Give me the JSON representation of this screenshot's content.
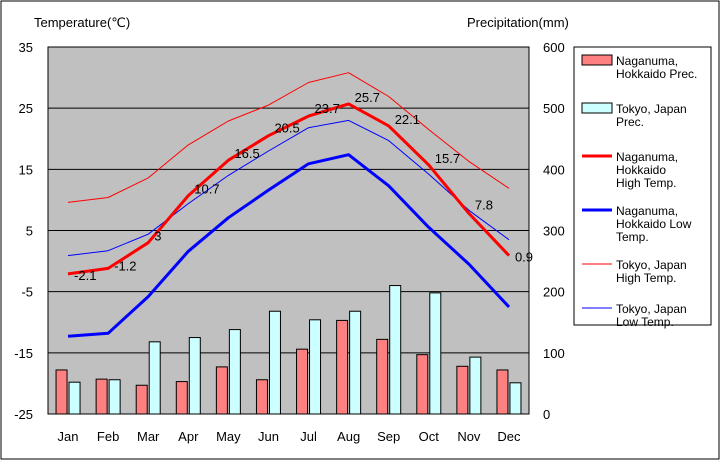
{
  "chart_data": {
    "type": "bar+line",
    "categories": [
      "Jan",
      "Feb",
      "Mar",
      "Apr",
      "May",
      "Jun",
      "Jul",
      "Aug",
      "Sep",
      "Oct",
      "Nov",
      "Dec"
    ],
    "left_axis": {
      "title": "Temperature(℃)",
      "min": -25,
      "max": 35,
      "ticks": [
        35,
        25,
        15,
        5,
        -5,
        -15,
        -25
      ]
    },
    "right_axis": {
      "title": "Precipitation(mm)",
      "min": 0,
      "max": 600,
      "ticks": [
        600,
        500,
        400,
        300,
        200,
        100,
        0
      ]
    },
    "bar_series": [
      {
        "name": "Naganuma, Hokkaido Prec.",
        "legend_lines": [
          "Naganuma,",
          "Hokkaido Prec."
        ],
        "color": "#ff8080",
        "values": [
          72,
          57,
          47,
          53,
          77,
          56,
          106,
          153,
          122,
          97,
          78,
          72
        ]
      },
      {
        "name": "Tokyo, Japan Prec.",
        "legend_lines": [
          "Tokyo, Japan",
          "Prec."
        ],
        "color": "#ccffff",
        "values": [
          52,
          56,
          118,
          125,
          138,
          168,
          154,
          168,
          210,
          198,
          93,
          51
        ]
      }
    ],
    "line_series": [
      {
        "name": "Naganuma, Hokkaido High Temp.",
        "legend_lines": [
          "Naganuma,",
          "Hokkaido",
          "High Temp."
        ],
        "color": "#ff0000",
        "width": 3,
        "values": [
          -2.1,
          -1.2,
          3,
          10.7,
          16.5,
          20.5,
          23.7,
          25.7,
          22.1,
          15.7,
          7.8,
          0.9
        ],
        "labels": [
          "-2.1",
          "-1.2",
          "3",
          "10.7",
          "16.5",
          "20.5",
          "23.7",
          "25.7",
          "22.1",
          "15.7",
          "7.8",
          "0.9"
        ]
      },
      {
        "name": "Naganuma, Hokkaido Low Temp.",
        "legend_lines": [
          "Naganuma,",
          "Hokkaido Low",
          "Temp."
        ],
        "color": "#0000ff",
        "width": 3,
        "values": [
          -12.3,
          -11.8,
          -5.8,
          1.6,
          7.1,
          11.6,
          15.9,
          17.4,
          12.3,
          5.5,
          -0.5,
          -7.5
        ]
      },
      {
        "name": "Tokyo, Japan High Temp.",
        "legend_lines": [
          "Tokyo, Japan",
          "High Temp."
        ],
        "color": "#ff0000",
        "width": 1,
        "values": [
          9.6,
          10.4,
          13.6,
          19,
          22.9,
          25.5,
          29.2,
          30.8,
          26.9,
          21.5,
          16.3,
          11.9
        ]
      },
      {
        "name": "Tokyo, Japan Low Temp.",
        "legend_lines": [
          "Tokyo, Japan",
          "Low Temp."
        ],
        "color": "#0000ff",
        "width": 1,
        "values": [
          0.9,
          1.7,
          4.4,
          9.4,
          14,
          18,
          21.8,
          23,
          19.7,
          14.2,
          8.3,
          3.5
        ]
      }
    ]
  }
}
